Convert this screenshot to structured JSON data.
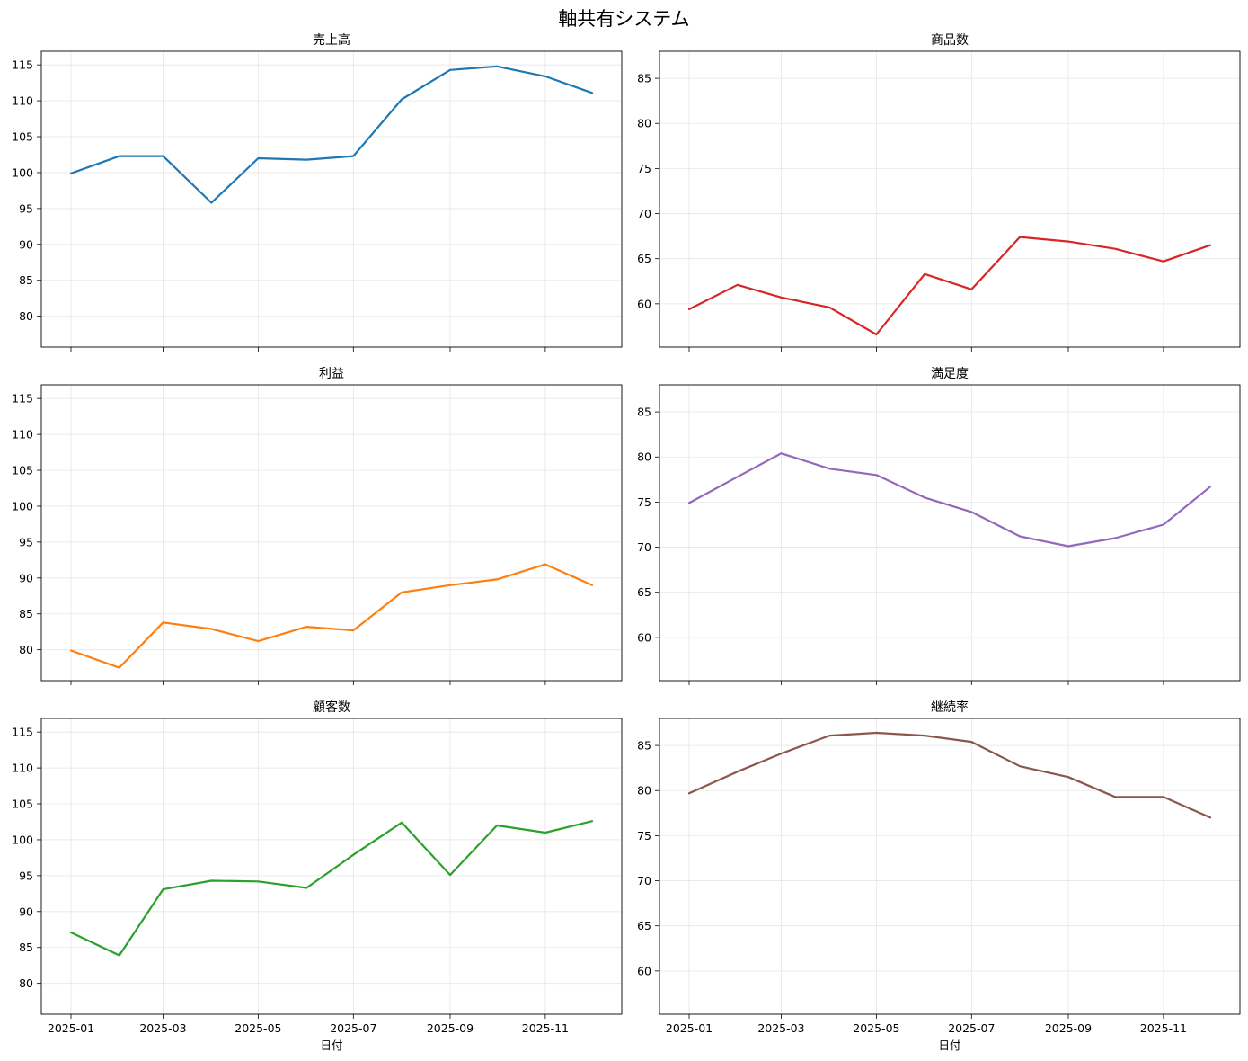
{
  "figure": {
    "title": "軸共有システム"
  },
  "chart_data": [
    {
      "type": "line",
      "title": "売上高",
      "xlabel": "",
      "ylabel": "",
      "color": "#1f77b4",
      "x": [
        "2025-01",
        "2025-02",
        "2025-03",
        "2025-04",
        "2025-05",
        "2025-06",
        "2025-07",
        "2025-08",
        "2025-09",
        "2025-10",
        "2025-11",
        "2025-12"
      ],
      "values": [
        99.9,
        102.3,
        102.3,
        95.8,
        102.0,
        101.8,
        102.3,
        110.2,
        114.3,
        114.8,
        113.4,
        111.1
      ],
      "ylim": [
        75.7,
        116.9
      ],
      "yticks": [
        "80",
        "85",
        "90",
        "95",
        "100",
        "105",
        "110",
        "115"
      ],
      "xticks": [
        "2025-01",
        "2025-03",
        "2025-05",
        "2025-07",
        "2025-09",
        "2025-11"
      ],
      "show_xticklabels": false,
      "grid": true
    },
    {
      "type": "line",
      "title": "商品数",
      "xlabel": "",
      "ylabel": "",
      "color": "#d62728",
      "x": [
        "2025-01",
        "2025-02",
        "2025-03",
        "2025-04",
        "2025-05",
        "2025-06",
        "2025-07",
        "2025-08",
        "2025-09",
        "2025-10",
        "2025-11",
        "2025-12"
      ],
      "values": [
        59.4,
        62.1,
        60.7,
        59.6,
        56.6,
        63.3,
        61.6,
        67.4,
        66.9,
        66.1,
        64.7,
        66.5
      ],
      "ylim": [
        55.2,
        88.0
      ],
      "yticks": [
        "60",
        "65",
        "70",
        "75",
        "80",
        "85"
      ],
      "xticks": [
        "2025-01",
        "2025-03",
        "2025-05",
        "2025-07",
        "2025-09",
        "2025-11"
      ],
      "show_xticklabels": false,
      "grid": true
    },
    {
      "type": "line",
      "title": "利益",
      "xlabel": "",
      "ylabel": "",
      "color": "#ff7f0e",
      "x": [
        "2025-01",
        "2025-02",
        "2025-03",
        "2025-04",
        "2025-05",
        "2025-06",
        "2025-07",
        "2025-08",
        "2025-09",
        "2025-10",
        "2025-11",
        "2025-12"
      ],
      "values": [
        79.9,
        77.5,
        83.8,
        82.9,
        81.2,
        83.2,
        82.7,
        88.0,
        89.0,
        89.8,
        91.9,
        89.0
      ],
      "ylim": [
        75.7,
        116.9
      ],
      "yticks": [
        "80",
        "85",
        "90",
        "95",
        "100",
        "105",
        "110",
        "115"
      ],
      "xticks": [
        "2025-01",
        "2025-03",
        "2025-05",
        "2025-07",
        "2025-09",
        "2025-11"
      ],
      "show_xticklabels": false,
      "grid": true
    },
    {
      "type": "line",
      "title": "満足度",
      "xlabel": "",
      "ylabel": "",
      "color": "#9467bd",
      "x": [
        "2025-01",
        "2025-02",
        "2025-03",
        "2025-04",
        "2025-05",
        "2025-06",
        "2025-07",
        "2025-08",
        "2025-09",
        "2025-10",
        "2025-11",
        "2025-12"
      ],
      "values": [
        74.9,
        77.8,
        80.4,
        78.7,
        78.0,
        75.5,
        73.9,
        71.2,
        70.1,
        71.0,
        72.5,
        76.7
      ],
      "ylim": [
        55.2,
        88.0
      ],
      "yticks": [
        "60",
        "65",
        "70",
        "75",
        "80",
        "85"
      ],
      "xticks": [
        "2025-01",
        "2025-03",
        "2025-05",
        "2025-07",
        "2025-09",
        "2025-11"
      ],
      "show_xticklabels": false,
      "grid": true
    },
    {
      "type": "line",
      "title": "顧客数",
      "xlabel": "日付",
      "ylabel": "",
      "color": "#2ca02c",
      "x": [
        "2025-01",
        "2025-02",
        "2025-03",
        "2025-04",
        "2025-05",
        "2025-06",
        "2025-07",
        "2025-08",
        "2025-09",
        "2025-10",
        "2025-11",
        "2025-12"
      ],
      "values": [
        87.1,
        83.9,
        93.1,
        94.3,
        94.2,
        93.3,
        97.9,
        102.4,
        95.1,
        102.0,
        101.0,
        102.6
      ],
      "ylim": [
        75.7,
        116.9
      ],
      "yticks": [
        "80",
        "85",
        "90",
        "95",
        "100",
        "105",
        "110",
        "115"
      ],
      "xticks": [
        "2025-01",
        "2025-03",
        "2025-05",
        "2025-07",
        "2025-09",
        "2025-11"
      ],
      "show_xticklabels": true,
      "grid": true
    },
    {
      "type": "line",
      "title": "継続率",
      "xlabel": "日付",
      "ylabel": "",
      "color": "#8c564b",
      "x": [
        "2025-01",
        "2025-02",
        "2025-03",
        "2025-04",
        "2025-05",
        "2025-06",
        "2025-07",
        "2025-08",
        "2025-09",
        "2025-10",
        "2025-11",
        "2025-12"
      ],
      "values": [
        79.7,
        82.1,
        84.1,
        86.1,
        86.4,
        86.1,
        85.4,
        82.7,
        81.5,
        79.3,
        79.3,
        77.0
      ],
      "ylim": [
        55.2,
        88.0
      ],
      "yticks": [
        "60",
        "65",
        "70",
        "75",
        "80",
        "85"
      ],
      "xticks": [
        "2025-01",
        "2025-03",
        "2025-05",
        "2025-07",
        "2025-09",
        "2025-11"
      ],
      "show_xticklabels": true,
      "grid": true
    }
  ]
}
